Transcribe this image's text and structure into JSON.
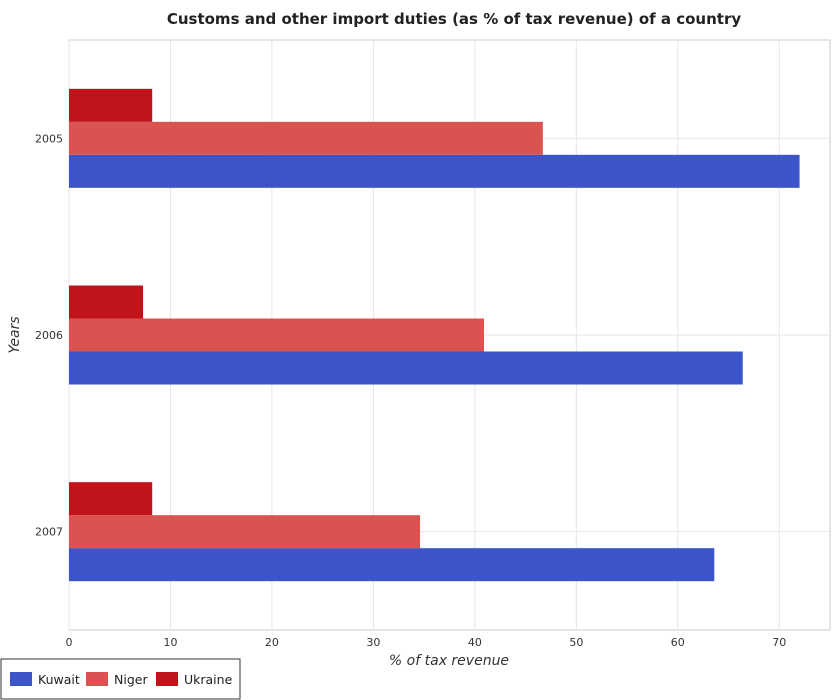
{
  "chart_data": {
    "type": "bar",
    "orientation": "horizontal",
    "title": "Customs and other import duties (as % of tax revenue) of a country",
    "xlabel": "% of tax revenue",
    "ylabel": "Years",
    "categories": [
      "2005",
      "2006",
      "2007"
    ],
    "xlim": [
      0,
      75
    ],
    "xticks": [
      0,
      10,
      20,
      30,
      40,
      50,
      60,
      70
    ],
    "grid": true,
    "legend_position": "bottom-left",
    "series": [
      {
        "name": "Kuwait",
        "color": "#3b55c8",
        "values": [
          72.0,
          66.4,
          63.6
        ]
      },
      {
        "name": "Niger",
        "color": "#d95450",
        "values": [
          46.7,
          40.9,
          34.6
        ]
      },
      {
        "name": "Ukraine",
        "color": "#c0141a",
        "values": [
          8.2,
          7.3,
          8.2
        ]
      }
    ]
  }
}
